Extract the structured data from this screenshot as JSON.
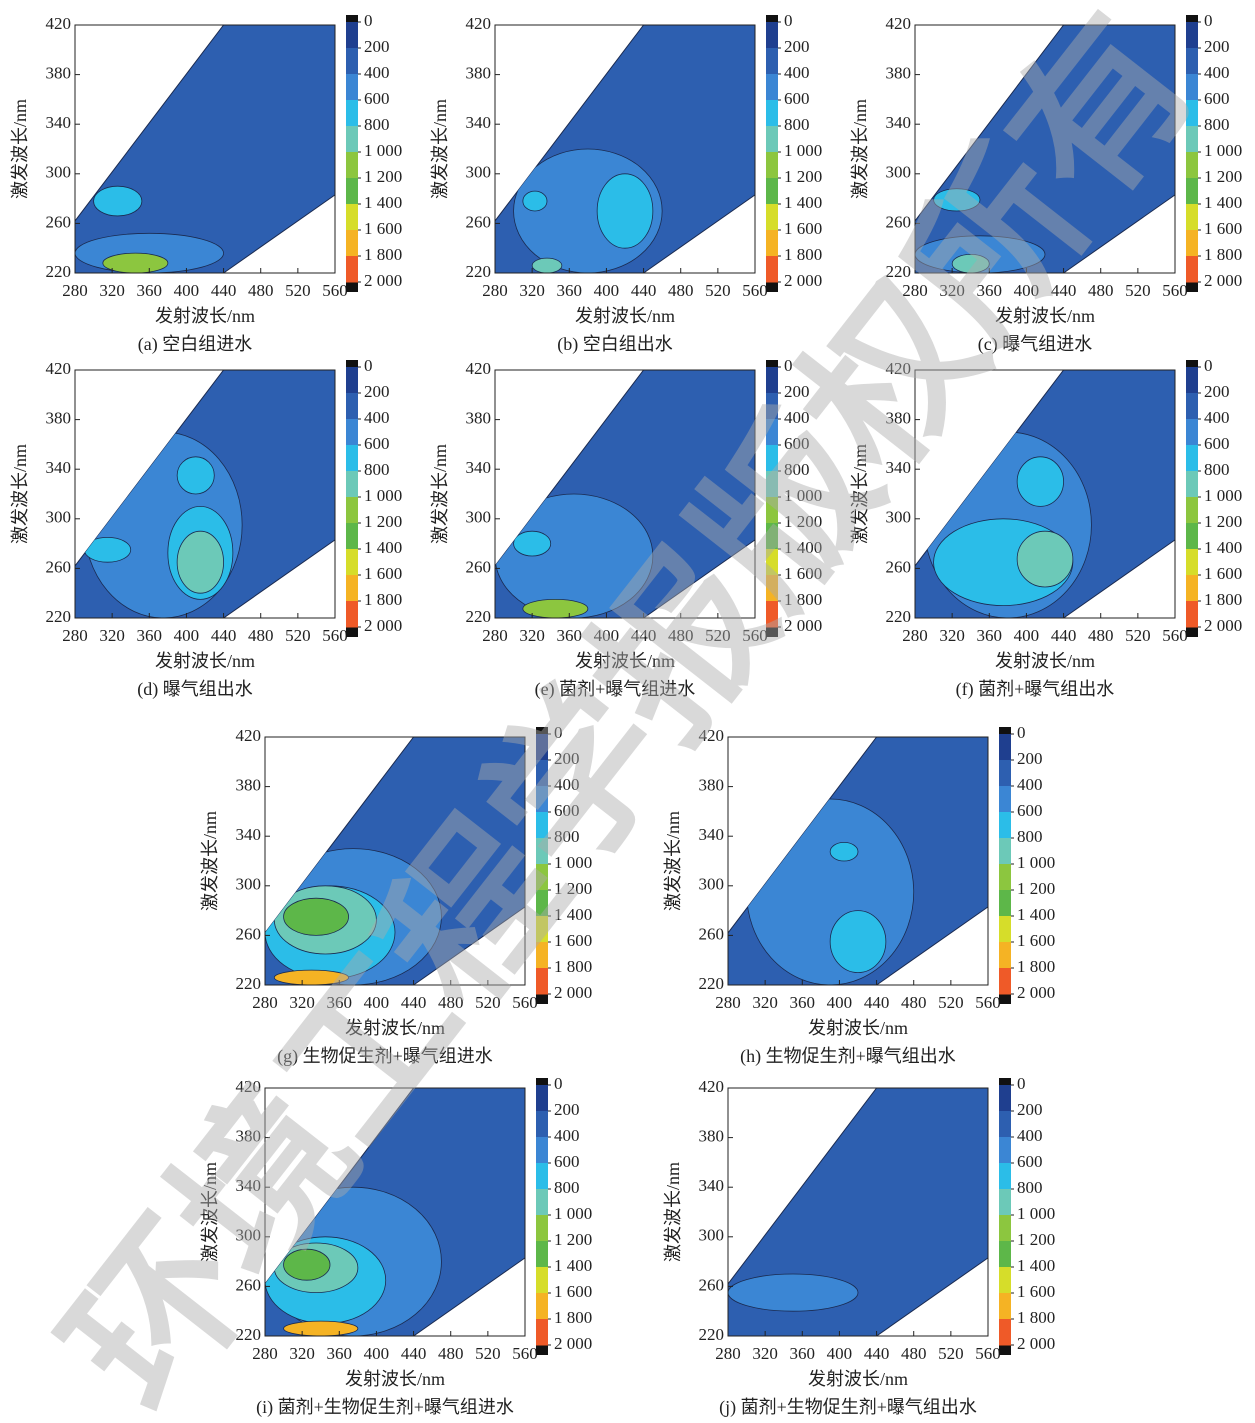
{
  "chart_data": [
    {
      "type": "contour",
      "title": "(a) 空白组进水",
      "x_label": "发射波长/nm",
      "y_label": "激发波长/nm",
      "xlim": [
        280,
        560
      ],
      "ylim": [
        220,
        420
      ],
      "xticks": [
        280,
        320,
        360,
        400,
        440,
        480,
        520,
        560
      ],
      "yticks": [
        220,
        260,
        300,
        340,
        380,
        420
      ],
      "zlim": [
        0,
        2000
      ],
      "zticks": [
        0,
        200,
        400,
        600,
        800,
        {
          "value": 1000,
          "label": "1 000"
        },
        {
          "value": 1200,
          "label": "1 200"
        },
        {
          "value": 1400,
          "label": "1 400"
        },
        {
          "value": 1600,
          "label": "1 600"
        },
        {
          "value": 1800,
          "label": "1 800"
        },
        {
          "value": 2000,
          "label": "2 000"
        }
      ],
      "colors": [
        "#1f3f8f",
        "#2d5fb0",
        "#3b86d4",
        "#2bbde8",
        "#6cc9b8",
        "#8cc63f",
        "#5db749",
        "#d6dd2a",
        "#f5b324",
        "#ef5a28"
      ],
      "background": 200,
      "regions": [
        {
          "em": [
            280,
            440
          ],
          "ex": [
            220,
            252
          ],
          "value": 400
        },
        {
          "em": [
            300,
            352
          ],
          "ex": [
            266,
            290
          ],
          "value": 600
        },
        {
          "em": [
            310,
            380
          ],
          "ex": [
            220,
            236
          ],
          "value": 1000
        }
      ]
    },
    {
      "type": "contour",
      "title": "(b) 空白组出水",
      "x_label": "发射波长/nm",
      "y_label": "激发波长/nm",
      "xlim": [
        280,
        560
      ],
      "ylim": [
        220,
        420
      ],
      "xticks": [
        280,
        320,
        360,
        400,
        440,
        480,
        520,
        560
      ],
      "yticks": [
        220,
        260,
        300,
        340,
        380,
        420
      ],
      "zlim": [
        0,
        2000
      ],
      "zticks": [
        0,
        200,
        400,
        600,
        800,
        {
          "value": 1000,
          "label": "1 000"
        },
        {
          "value": 1200,
          "label": "1 200"
        },
        {
          "value": 1400,
          "label": "1 400"
        },
        {
          "value": 1600,
          "label": "1 600"
        },
        {
          "value": 1800,
          "label": "1 800"
        },
        {
          "value": 2000,
          "label": "2 000"
        }
      ],
      "colors": [
        "#1f3f8f",
        "#2d5fb0",
        "#3b86d4",
        "#2bbde8",
        "#6cc9b8",
        "#8cc63f",
        "#5db749",
        "#d6dd2a",
        "#f5b324",
        "#ef5a28"
      ],
      "background": 200,
      "regions": [
        {
          "em": [
            300,
            460
          ],
          "ex": [
            220,
            320
          ],
          "value": 400
        },
        {
          "em": [
            390,
            450
          ],
          "ex": [
            240,
            300
          ],
          "value": 600
        },
        {
          "em": [
            310,
            336
          ],
          "ex": [
            270,
            286
          ],
          "value": 600
        },
        {
          "em": [
            320,
            352
          ],
          "ex": [
            220,
            232
          ],
          "value": 800
        }
      ]
    },
    {
      "type": "contour",
      "title": "(c) 曝气组进水",
      "x_label": "发射波长/nm",
      "y_label": "激发波长/nm",
      "xlim": [
        280,
        560
      ],
      "ylim": [
        220,
        420
      ],
      "xticks": [
        280,
        320,
        360,
        400,
        440,
        480,
        520,
        560
      ],
      "yticks": [
        220,
        260,
        300,
        340,
        380,
        420
      ],
      "zlim": [
        0,
        2000
      ],
      "zticks": [
        0,
        200,
        400,
        600,
        800,
        {
          "value": 1000,
          "label": "1 000"
        },
        {
          "value": 1200,
          "label": "1 200"
        },
        {
          "value": 1400,
          "label": "1 400"
        },
        {
          "value": 1600,
          "label": "1 600"
        },
        {
          "value": 1800,
          "label": "1 800"
        },
        {
          "value": 2000,
          "label": "2 000"
        }
      ],
      "colors": [
        "#1f3f8f",
        "#2d5fb0",
        "#3b86d4",
        "#2bbde8",
        "#6cc9b8",
        "#8cc63f",
        "#5db749",
        "#d6dd2a",
        "#f5b324",
        "#ef5a28"
      ],
      "background": 200,
      "regions": [
        {
          "em": [
            280,
            420
          ],
          "ex": [
            220,
            250
          ],
          "value": 400
        },
        {
          "em": [
            300,
            350
          ],
          "ex": [
            270,
            288
          ],
          "value": 600
        },
        {
          "em": [
            320,
            360
          ],
          "ex": [
            220,
            235
          ],
          "value": 800
        }
      ]
    },
    {
      "type": "contour",
      "title": "(d) 曝气组出水",
      "x_label": "发射波长/nm",
      "y_label": "激发波长/nm",
      "xlim": [
        280,
        560
      ],
      "ylim": [
        220,
        420
      ],
      "xticks": [
        280,
        320,
        360,
        400,
        440,
        480,
        520,
        560
      ],
      "yticks": [
        220,
        260,
        300,
        340,
        380,
        420
      ],
      "zlim": [
        0,
        2000
      ],
      "zticks": [
        0,
        200,
        400,
        600,
        800,
        {
          "value": 1000,
          "label": "1 000"
        },
        {
          "value": 1200,
          "label": "1 200"
        },
        {
          "value": 1400,
          "label": "1 400"
        },
        {
          "value": 1600,
          "label": "1 600"
        },
        {
          "value": 1800,
          "label": "1 800"
        },
        {
          "value": 2000,
          "label": "2 000"
        }
      ],
      "colors": [
        "#1f3f8f",
        "#2d5fb0",
        "#3b86d4",
        "#2bbde8",
        "#6cc9b8",
        "#8cc63f",
        "#5db749",
        "#d6dd2a",
        "#f5b324",
        "#ef5a28"
      ],
      "background": 200,
      "regions": [
        {
          "em": [
            290,
            460
          ],
          "ex": [
            220,
            370
          ],
          "value": 400
        },
        {
          "em": [
            380,
            450
          ],
          "ex": [
            235,
            310
          ],
          "value": 600
        },
        {
          "em": [
            390,
            440
          ],
          "ex": [
            240,
            290
          ],
          "value": 800
        },
        {
          "em": [
            390,
            430
          ],
          "ex": [
            320,
            350
          ],
          "value": 600
        },
        {
          "em": [
            290,
            340
          ],
          "ex": [
            265,
            285
          ],
          "value": 600
        }
      ]
    },
    {
      "type": "contour",
      "title": "(e) 菌剂+曝气组进水",
      "x_label": "发射波长/nm",
      "y_label": "激发波长/nm",
      "xlim": [
        280,
        560
      ],
      "ylim": [
        220,
        420
      ],
      "xticks": [
        280,
        320,
        360,
        400,
        440,
        480,
        520,
        560
      ],
      "yticks": [
        220,
        260,
        300,
        340,
        380,
        420
      ],
      "zlim": [
        0,
        2000
      ],
      "zticks": [
        0,
        200,
        400,
        600,
        800,
        {
          "value": 1000,
          "label": "1 000"
        },
        {
          "value": 1200,
          "label": "1 200"
        },
        {
          "value": 1400,
          "label": "1 400"
        },
        {
          "value": 1600,
          "label": "1 600"
        },
        {
          "value": 1800,
          "label": "1 800"
        },
        {
          "value": 2000,
          "label": "2 000"
        }
      ],
      "colors": [
        "#1f3f8f",
        "#2d5fb0",
        "#3b86d4",
        "#2bbde8",
        "#6cc9b8",
        "#8cc63f",
        "#5db749",
        "#d6dd2a",
        "#f5b324",
        "#ef5a28"
      ],
      "background": 200,
      "regions": [
        {
          "em": [
            280,
            450
          ],
          "ex": [
            220,
            320
          ],
          "value": 400
        },
        {
          "em": [
            300,
            340
          ],
          "ex": [
            270,
            290
          ],
          "value": 600
        },
        {
          "em": [
            310,
            380
          ],
          "ex": [
            220,
            235
          ],
          "value": 1000
        }
      ]
    },
    {
      "type": "contour",
      "title": "(f) 菌剂+曝气组出水",
      "x_label": "发射波长/nm",
      "y_label": "激发波长/nm",
      "xlim": [
        280,
        560
      ],
      "ylim": [
        220,
        420
      ],
      "xticks": [
        280,
        320,
        360,
        400,
        440,
        480,
        520,
        560
      ],
      "yticks": [
        220,
        260,
        300,
        340,
        380,
        420
      ],
      "zlim": [
        0,
        2000
      ],
      "zticks": [
        0,
        200,
        400,
        600,
        800,
        {
          "value": 1000,
          "label": "1 000"
        },
        {
          "value": 1200,
          "label": "1 200"
        },
        {
          "value": 1400,
          "label": "1 400"
        },
        {
          "value": 1600,
          "label": "1 600"
        },
        {
          "value": 1800,
          "label": "1 800"
        },
        {
          "value": 2000,
          "label": "2 000"
        }
      ],
      "colors": [
        "#1f3f8f",
        "#2d5fb0",
        "#3b86d4",
        "#2bbde8",
        "#6cc9b8",
        "#8cc63f",
        "#5db749",
        "#d6dd2a",
        "#f5b324",
        "#ef5a28"
      ],
      "background": 200,
      "regions": [
        {
          "em": [
            290,
            470
          ],
          "ex": [
            220,
            370
          ],
          "value": 400
        },
        {
          "em": [
            300,
            450
          ],
          "ex": [
            230,
            300
          ],
          "value": 600
        },
        {
          "em": [
            390,
            450
          ],
          "ex": [
            245,
            290
          ],
          "value": 800
        },
        {
          "em": [
            390,
            440
          ],
          "ex": [
            310,
            350
          ],
          "value": 600
        }
      ]
    },
    {
      "type": "contour",
      "title": "(g) 生物促生剂+曝气组进水",
      "x_label": "发射波长/nm",
      "y_label": "激发波长/nm",
      "xlim": [
        280,
        560
      ],
      "ylim": [
        220,
        420
      ],
      "xticks": [
        280,
        320,
        360,
        400,
        440,
        480,
        520,
        560
      ],
      "yticks": [
        220,
        260,
        300,
        340,
        380,
        420
      ],
      "zlim": [
        0,
        2000
      ],
      "zticks": [
        0,
        200,
        400,
        600,
        800,
        {
          "value": 1000,
          "label": "1 000"
        },
        {
          "value": 1200,
          "label": "1 200"
        },
        {
          "value": 1400,
          "label": "1 400"
        },
        {
          "value": 1600,
          "label": "1 600"
        },
        {
          "value": 1800,
          "label": "1 800"
        },
        {
          "value": 2000,
          "label": "2 000"
        }
      ],
      "colors": [
        "#1f3f8f",
        "#2d5fb0",
        "#3b86d4",
        "#2bbde8",
        "#6cc9b8",
        "#8cc63f",
        "#5db749",
        "#d6dd2a",
        "#f5b324",
        "#ef5a28"
      ],
      "background": 200,
      "regions": [
        {
          "em": [
            280,
            470
          ],
          "ex": [
            220,
            330
          ],
          "value": 400
        },
        {
          "em": [
            280,
            420
          ],
          "ex": [
            225,
            300
          ],
          "value": 600
        },
        {
          "em": [
            290,
            400
          ],
          "ex": [
            245,
            300
          ],
          "value": 800
        },
        {
          "em": [
            300,
            370
          ],
          "ex": [
            260,
            290
          ],
          "value": 1200
        },
        {
          "em": [
            290,
            370
          ],
          "ex": [
            220,
            232
          ],
          "value": 1600
        }
      ]
    },
    {
      "type": "contour",
      "title": "(h) 生物促生剂+曝气组出水",
      "x_label": "发射波长/nm",
      "y_label": "激发波长/nm",
      "xlim": [
        280,
        560
      ],
      "ylim": [
        220,
        420
      ],
      "xticks": [
        280,
        320,
        360,
        400,
        440,
        480,
        520,
        560
      ],
      "yticks": [
        220,
        260,
        300,
        340,
        380,
        420
      ],
      "zlim": [
        0,
        2000
      ],
      "zticks": [
        0,
        200,
        400,
        600,
        800,
        {
          "value": 1000,
          "label": "1 000"
        },
        {
          "value": 1200,
          "label": "1 200"
        },
        {
          "value": 1400,
          "label": "1 400"
        },
        {
          "value": 1600,
          "label": "1 600"
        },
        {
          "value": 1800,
          "label": "1 800"
        },
        {
          "value": 2000,
          "label": "2 000"
        }
      ],
      "colors": [
        "#1f3f8f",
        "#2d5fb0",
        "#3b86d4",
        "#2bbde8",
        "#6cc9b8",
        "#8cc63f",
        "#5db749",
        "#d6dd2a",
        "#f5b324",
        "#ef5a28"
      ],
      "background": 200,
      "regions": [
        {
          "em": [
            300,
            480
          ],
          "ex": [
            220,
            370
          ],
          "value": 400
        },
        {
          "em": [
            390,
            450
          ],
          "ex": [
            230,
            280
          ],
          "value": 600
        },
        {
          "em": [
            390,
            420
          ],
          "ex": [
            320,
            335
          ],
          "value": 600
        }
      ]
    },
    {
      "type": "contour",
      "title": "(i) 菌剂+生物促生剂+曝气组进水",
      "x_label": "发射波长/nm",
      "y_label": "激发波长/nm",
      "xlim": [
        280,
        560
      ],
      "ylim": [
        220,
        420
      ],
      "xticks": [
        280,
        320,
        360,
        400,
        440,
        480,
        520,
        560
      ],
      "yticks": [
        220,
        260,
        300,
        340,
        380,
        420
      ],
      "zlim": [
        0,
        2000
      ],
      "zticks": [
        0,
        200,
        400,
        600,
        800,
        {
          "value": 1000,
          "label": "1 000"
        },
        {
          "value": 1200,
          "label": "1 200"
        },
        {
          "value": 1400,
          "label": "1 400"
        },
        {
          "value": 1600,
          "label": "1 600"
        },
        {
          "value": 1800,
          "label": "1 800"
        },
        {
          "value": 2000,
          "label": "2 000"
        }
      ],
      "colors": [
        "#1f3f8f",
        "#2d5fb0",
        "#3b86d4",
        "#2bbde8",
        "#6cc9b8",
        "#8cc63f",
        "#5db749",
        "#d6dd2a",
        "#f5b324",
        "#ef5a28"
      ],
      "background": 200,
      "regions": [
        {
          "em": [
            280,
            470
          ],
          "ex": [
            220,
            340
          ],
          "value": 400
        },
        {
          "em": [
            280,
            410
          ],
          "ex": [
            230,
            300
          ],
          "value": 600
        },
        {
          "em": [
            290,
            380
          ],
          "ex": [
            255,
            295
          ],
          "value": 800
        },
        {
          "em": [
            300,
            350
          ],
          "ex": [
            265,
            290
          ],
          "value": 1200
        },
        {
          "em": [
            300,
            380
          ],
          "ex": [
            220,
            232
          ],
          "value": 1600
        }
      ]
    },
    {
      "type": "contour",
      "title": "(j) 菌剂+生物促生剂+曝气组出水",
      "x_label": "发射波长/nm",
      "y_label": "激发波长/nm",
      "xlim": [
        280,
        560
      ],
      "ylim": [
        220,
        420
      ],
      "xticks": [
        280,
        320,
        360,
        400,
        440,
        480,
        520,
        560
      ],
      "yticks": [
        220,
        260,
        300,
        340,
        380,
        420
      ],
      "zlim": [
        0,
        2000
      ],
      "zticks": [
        0,
        200,
        400,
        600,
        800,
        {
          "value": 1000,
          "label": "1 000"
        },
        {
          "value": 1200,
          "label": "1 200"
        },
        {
          "value": 1400,
          "label": "1 400"
        },
        {
          "value": 1600,
          "label": "1 600"
        },
        {
          "value": 1800,
          "label": "1 800"
        },
        {
          "value": 2000,
          "label": "2 000"
        }
      ],
      "colors": [
        "#1f3f8f",
        "#2d5fb0",
        "#3b86d4",
        "#2bbde8",
        "#6cc9b8",
        "#8cc63f",
        "#5db749",
        "#d6dd2a",
        "#f5b324",
        "#ef5a28"
      ],
      "background": 200,
      "regions": [
        {
          "em": [
            280,
            420
          ],
          "ex": [
            240,
            270
          ],
          "value": 400
        }
      ]
    }
  ],
  "watermark": "环境工程学报版权所有"
}
